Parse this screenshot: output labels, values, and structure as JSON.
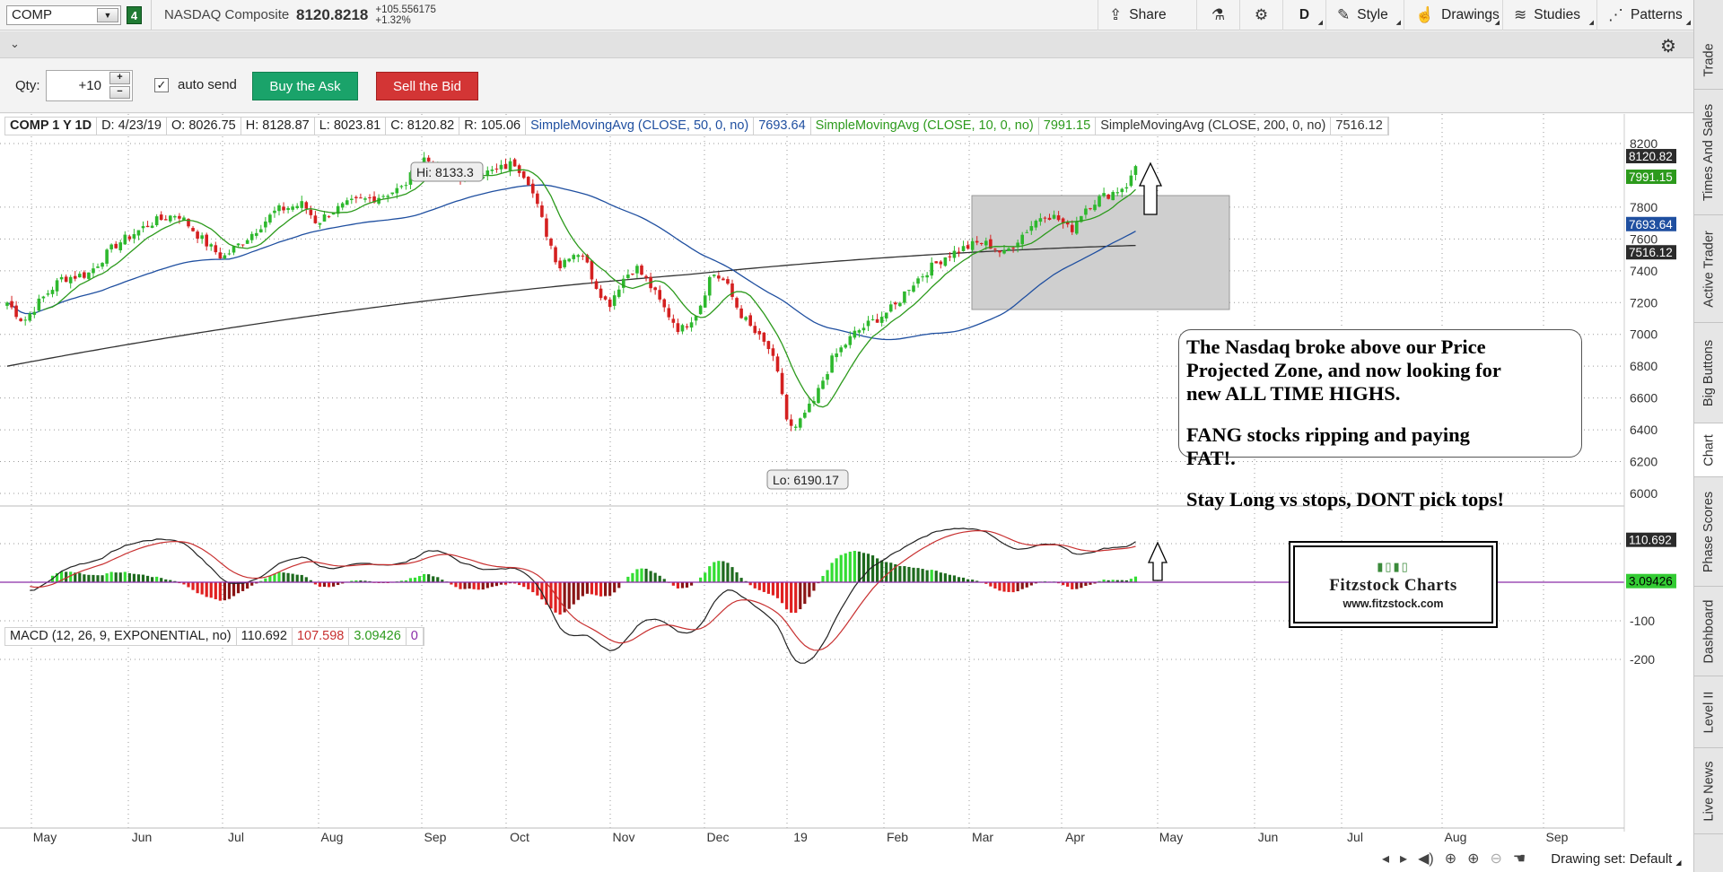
{
  "toolbar": {
    "symbol": "COMP",
    "link_group": "4",
    "description": "NASDAQ Composite",
    "last_price": "8120.8218",
    "net_change": "+105.556175",
    "pct_change": "+1.32%",
    "share_label": "Share",
    "period_label": "D",
    "style_label": "Style",
    "drawings_label": "Drawings",
    "studies_label": "Studies",
    "patterns_label": "Patterns"
  },
  "side_tabs": [
    {
      "label": "Trade"
    },
    {
      "label": "Times And Sales"
    },
    {
      "label": "Active Trader"
    },
    {
      "label": "Big Buttons"
    },
    {
      "label": "Chart"
    },
    {
      "label": "Phase Scores"
    },
    {
      "label": "Dashboard"
    },
    {
      "label": "Level II"
    },
    {
      "label": "Live News"
    }
  ],
  "order_bar": {
    "qty_label": "Qty:",
    "qty_value": "+10",
    "auto_send_label": "auto send",
    "auto_send_checked": true,
    "buy_label": "Buy the Ask",
    "sell_label": "Sell the Bid"
  },
  "study_header": {
    "title": "COMP 1 Y 1D",
    "date": "D: 4/23/19",
    "open": "O: 8026.75",
    "high": "H: 8128.87",
    "low": "L: 8023.81",
    "close": "C: 8120.82",
    "range": "R: 105.06",
    "sma50_label": "SimpleMovingAvg (CLOSE, 50, 0, no)",
    "sma50_value": "7693.64",
    "sma10_label": "SimpleMovingAvg (CLOSE, 10, 0, no)",
    "sma10_value": "7991.15",
    "sma200_label": "SimpleMovingAvg (CLOSE, 200, 0, no)",
    "sma200_value": "7516.12"
  },
  "macd_header": {
    "label": "MACD (12, 26, 9, EXPONENTIAL, no)",
    "value": "110.692",
    "avg": "107.598",
    "diff": "3.09426",
    "zero": "0"
  },
  "price_axis": {
    "ticks": [
      "8200",
      "7800",
      "7600",
      "7400",
      "7200",
      "7000",
      "6800",
      "6600",
      "6400",
      "6200",
      "6000"
    ],
    "badges": [
      {
        "label": "8120.82",
        "color": "#2b2b2b"
      },
      {
        "label": "7991.15",
        "color": "#2c9a1c"
      },
      {
        "label": "7693.64",
        "color": "#1f4fa0"
      },
      {
        "label": "7516.12",
        "color": "#2b2b2b"
      }
    ]
  },
  "macd_axis": {
    "ticks": [
      "-100",
      "-200"
    ],
    "badges": [
      {
        "label": "110.692",
        "color": "#2b2b2b"
      },
      {
        "label": "3.09426",
        "color": "#33cc33"
      }
    ]
  },
  "time_axis": [
    "May",
    "Jun",
    "Jul",
    "Aug",
    "Sep",
    "Oct",
    "Nov",
    "Dec",
    "19",
    "Feb",
    "Mar",
    "Apr",
    "May",
    "Jun",
    "Jul",
    "Aug",
    "Sep"
  ],
  "annotations": {
    "high_label": "Hi: 8133.3",
    "low_label": "Lo: 6190.17"
  },
  "note": {
    "line1": "The Nasdaq broke above our Price",
    "line2": "Projected Zone, and now looking for",
    "line3": "new ALL TIME HIGHS.",
    "line4": "FANG stocks ripping and paying",
    "line5": "FAT!.",
    "line6": "Stay Long vs stops, DONT pick tops!"
  },
  "logo": {
    "title": "Fitzstock Charts",
    "url": "www.fitzstock.com"
  },
  "status": {
    "drawing_set": "Drawing set: Default"
  },
  "colors": {
    "sma10": "#2c9a1c",
    "sma50": "#1f4fa0",
    "sma200": "#333333",
    "up": "#2db82d",
    "down": "#d42020",
    "macd_line": "#222222",
    "macd_avg": "#c83030",
    "zero_line": "#8a2ca8",
    "zone": "#cfcfcf"
  }
}
